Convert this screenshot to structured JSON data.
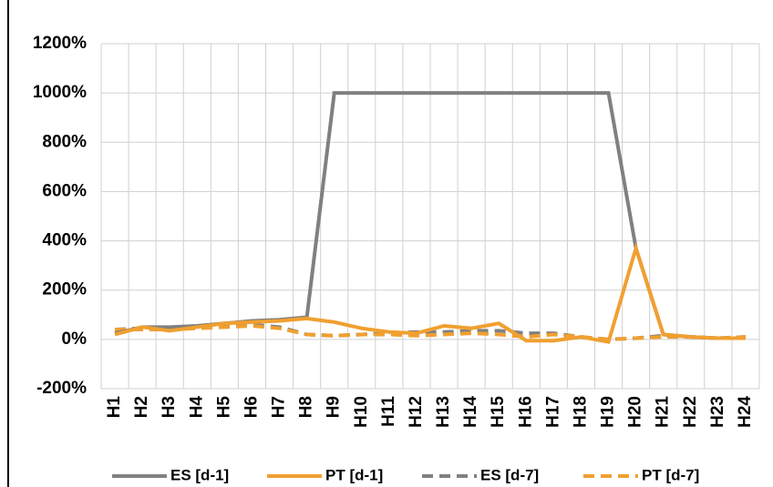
{
  "chart_data": {
    "type": "line",
    "categories": [
      "H1",
      "H2",
      "H3",
      "H4",
      "H5",
      "H6",
      "H7",
      "H8",
      "H9",
      "H10",
      "H11",
      "H12",
      "H13",
      "H14",
      "H15",
      "H16",
      "H17",
      "H18",
      "H19",
      "H20",
      "H21",
      "H22",
      "H23",
      "H24"
    ],
    "series": [
      {
        "name": "ES [d-1]",
        "color": "#808080",
        "dash": false,
        "values": [
          25,
          50,
          50,
          55,
          65,
          75,
          80,
          90,
          1000,
          1000,
          1000,
          1000,
          1000,
          1000,
          1000,
          1000,
          1000,
          1000,
          1000,
          370,
          20,
          10,
          5,
          5
        ]
      },
      {
        "name": "PT [d-1]",
        "color": "#f0a030",
        "dash": false,
        "values": [
          20,
          50,
          35,
          50,
          65,
          70,
          75,
          85,
          70,
          45,
          30,
          25,
          55,
          45,
          65,
          -5,
          -5,
          10,
          -10,
          370,
          20,
          10,
          5,
          5
        ]
      },
      {
        "name": "ES [d-7]",
        "color": "#808080",
        "dash": true,
        "values": [
          40,
          45,
          45,
          50,
          55,
          60,
          50,
          20,
          15,
          20,
          25,
          30,
          30,
          35,
          35,
          25,
          25,
          10,
          0,
          5,
          15,
          10,
          5,
          10
        ]
      },
      {
        "name": "PT [d-7]",
        "color": "#f0a030",
        "dash": true,
        "values": [
          40,
          40,
          40,
          45,
          50,
          55,
          45,
          20,
          15,
          20,
          20,
          15,
          20,
          25,
          20,
          10,
          20,
          10,
          0,
          5,
          10,
          10,
          5,
          10
        ]
      }
    ],
    "ylim": [
      -200,
      1200
    ],
    "yticks": [
      {
        "value": -200,
        "label": "-200%"
      },
      {
        "value": 0,
        "label": "0%"
      },
      {
        "value": 200,
        "label": "200%"
      },
      {
        "value": 400,
        "label": "400%"
      },
      {
        "value": 600,
        "label": "600%"
      },
      {
        "value": 800,
        "label": "800%"
      },
      {
        "value": 1000,
        "label": "1000%"
      },
      {
        "value": 1200,
        "label": "1200%"
      }
    ],
    "grid": true,
    "legend": "bottom"
  }
}
